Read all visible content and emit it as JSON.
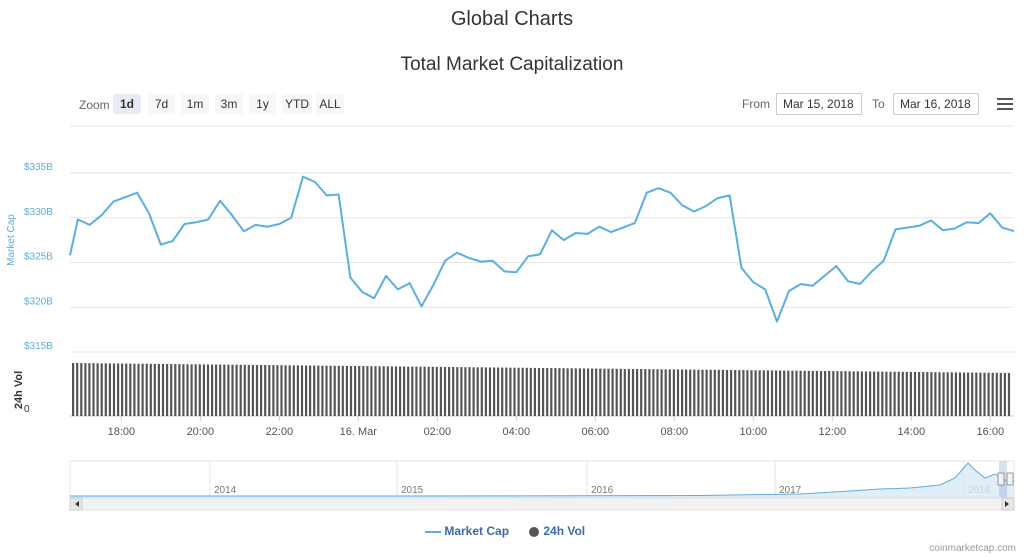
{
  "header": {
    "title": "Global Charts",
    "subtitle": "Total Market Capitalization"
  },
  "zoom": {
    "label": "Zoom",
    "buttons": [
      {
        "label": "1d",
        "active": true
      },
      {
        "label": "7d",
        "active": false
      },
      {
        "label": "1m",
        "active": false
      },
      {
        "label": "3m",
        "active": false
      },
      {
        "label": "1y",
        "active": false
      },
      {
        "label": "YTD",
        "active": false
      },
      {
        "label": "ALL",
        "active": false
      }
    ]
  },
  "range": {
    "from_label": "From",
    "from_value": "Mar 15, 2018",
    "to_label": "To",
    "to_value": "Mar 16, 2018"
  },
  "menu": {
    "icon": "hamburger-menu-icon"
  },
  "legend": {
    "market_cap": "Market Cap",
    "volume": "24h Vol"
  },
  "credit": "coinmarketcap.com",
  "colors": {
    "market_cap": "#5aafde",
    "volume": "#555555",
    "grid": "#e6e6e6",
    "nav_fill": "#d9e8f5"
  },
  "chart_data": {
    "type": "line",
    "title": "Total Market Capitalization",
    "x_labels": [
      "18:00",
      "20:00",
      "22:00",
      "16. Mar",
      "02:00",
      "04:00",
      "06:00",
      "08:00",
      "10:00",
      "12:00",
      "14:00",
      "16:00"
    ],
    "x_range_hours": [
      -7.3,
      16.6
    ],
    "ylim": [
      315,
      335
    ],
    "y_ticks": [
      "$315B",
      "$320B",
      "$325B",
      "$330B",
      "$335B"
    ],
    "ylabel": "Market Cap",
    "series": [
      {
        "name": "Market Cap",
        "unit": "billion USD",
        "x_hours": [
          -7.3,
          -7.1,
          -6.8,
          -6.5,
          -6.2,
          -5.9,
          -5.6,
          -5.3,
          -5.0,
          -4.7,
          -4.4,
          -4.1,
          -3.8,
          -3.5,
          -3.2,
          -2.9,
          -2.6,
          -2.3,
          -2.0,
          -1.7,
          -1.4,
          -1.1,
          -0.8,
          -0.5,
          -0.2,
          0.1,
          0.4,
          0.7,
          1.0,
          1.3,
          1.6,
          1.9,
          2.2,
          2.5,
          2.8,
          3.1,
          3.4,
          3.7,
          4.0,
          4.3,
          4.6,
          4.9,
          5.2,
          5.5,
          5.8,
          6.1,
          6.4,
          6.7,
          7.0,
          7.3,
          7.6,
          7.9,
          8.2,
          8.5,
          8.8,
          9.1,
          9.4,
          9.7,
          10.0,
          10.3,
          10.6,
          10.9,
          11.2,
          11.5,
          11.8,
          12.1,
          12.4,
          12.7,
          13.0,
          13.3,
          13.6,
          13.9,
          14.2,
          14.5,
          14.8,
          15.1,
          15.4,
          15.7,
          16.0,
          16.3,
          16.6
        ],
        "values": [
          325.8,
          329.8,
          329.2,
          330.3,
          331.8,
          332.3,
          332.8,
          330.5,
          327.0,
          327.4,
          329.3,
          329.5,
          329.8,
          331.9,
          330.3,
          328.5,
          329.2,
          329.0,
          329.3,
          330.0,
          334.6,
          334.0,
          332.5,
          332.6,
          323.3,
          321.7,
          321.0,
          323.5,
          322.0,
          322.7,
          320.1,
          322.5,
          325.2,
          326.1,
          325.5,
          325.1,
          325.2,
          324.0,
          323.9,
          325.7,
          325.9,
          328.6,
          327.5,
          328.3,
          328.2,
          329.0,
          328.4,
          328.9,
          329.4,
          332.8,
          333.3,
          332.8,
          331.4,
          330.7,
          331.3,
          332.2,
          332.5,
          324.4,
          322.8,
          322.0,
          318.4,
          321.8,
          322.6,
          322.4,
          323.5,
          324.6,
          322.9,
          322.6,
          324.0,
          325.2,
          328.7,
          328.9,
          329.1,
          329.7,
          328.6,
          328.8,
          329.5,
          329.4,
          330.5,
          328.9,
          328.5
        ]
      },
      {
        "name": "24h Vol",
        "values": "approximately constant bars across the day, slowly tapering"
      }
    ],
    "navigator": {
      "year_labels": [
        "2014",
        "2015",
        "2016",
        "2017",
        "2018"
      ]
    },
    "grid": true,
    "legend_position": "bottom-center"
  }
}
